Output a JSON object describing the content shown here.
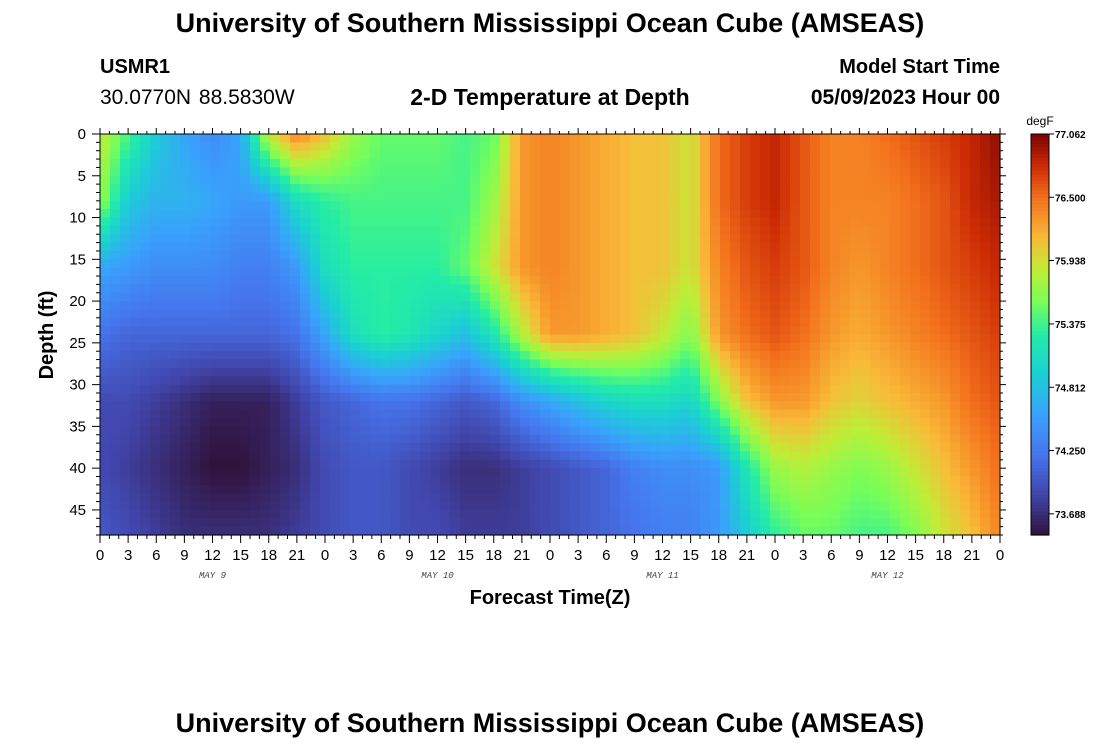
{
  "header": {
    "title": "University of Southern Mississippi Ocean Cube (AMSEAS)",
    "station": "USMR1",
    "coords": "30.0770N  88.5830W",
    "subtitle": "2-D Temperature at Depth",
    "start_label": "Model Start Time",
    "start_value": "05/09/2023 Hour 00"
  },
  "footer": {
    "title": "University of Southern Mississippi Ocean Cube (AMSEAS)"
  },
  "chart_data": {
    "type": "heatmap",
    "title": "2-D Temperature at Depth",
    "xlabel": "Forecast Time(Z)",
    "ylabel": "Depth (ft)",
    "x_ticks": [
      "0",
      "3",
      "6",
      "9",
      "12",
      "15",
      "18",
      "21",
      "0",
      "3",
      "6",
      "9",
      "12",
      "15",
      "18",
      "21",
      "0",
      "3",
      "6",
      "9",
      "12",
      "15",
      "18",
      "21",
      "0",
      "3",
      "6",
      "9",
      "12",
      "15",
      "18",
      "21",
      "0"
    ],
    "x_range_hours": [
      0,
      96
    ],
    "day_labels": [
      "MAY 9",
      "MAY 10",
      "MAY 11",
      "MAY 12"
    ],
    "y_ticks": [
      0,
      5,
      10,
      15,
      20,
      25,
      30,
      35,
      40,
      45
    ],
    "ylim": [
      0,
      48
    ],
    "colorbar": {
      "unit": "degF",
      "min": 73.5,
      "max": 77.062,
      "ticks": [
        "77.062",
        "76.500",
        "75.938",
        "75.375",
        "74.812",
        "74.250",
        "73.688"
      ]
    },
    "depths_ft": [
      0,
      8,
      16,
      24,
      32,
      40,
      48
    ],
    "times_h": [
      0,
      3,
      6,
      9,
      12,
      15,
      18,
      21,
      24,
      27,
      30,
      33,
      36,
      39,
      42,
      45,
      48,
      51,
      54,
      57,
      60,
      63,
      66,
      69,
      72,
      75,
      78,
      81,
      84,
      87,
      90,
      93,
      96
    ],
    "temperature_degF": [
      [
        75.9,
        75.4,
        74.9,
        74.6,
        74.4,
        74.6,
        75.9,
        76.4,
        76.1,
        75.7,
        75.5,
        75.5,
        75.5,
        75.4,
        75.5,
        76.3,
        76.4,
        76.3,
        76.2,
        76.1,
        76.1,
        75.9,
        76.5,
        76.7,
        76.8,
        76.6,
        76.4,
        76.4,
        76.5,
        76.6,
        76.7,
        76.8,
        77.0
      ],
      [
        75.7,
        74.9,
        74.7,
        74.7,
        74.6,
        74.5,
        74.5,
        75.1,
        75.3,
        75.4,
        75.4,
        75.4,
        75.4,
        75.4,
        75.7,
        76.3,
        76.4,
        76.3,
        76.2,
        76.1,
        76.1,
        75.9,
        76.5,
        76.7,
        76.8,
        76.6,
        76.4,
        76.4,
        76.4,
        76.5,
        76.6,
        76.8,
        76.9
      ],
      [
        74.6,
        74.5,
        74.4,
        74.4,
        74.4,
        74.3,
        74.3,
        74.5,
        75.1,
        75.3,
        75.3,
        75.3,
        75.3,
        75.5,
        75.9,
        76.3,
        76.4,
        76.3,
        76.2,
        76.1,
        76.1,
        75.9,
        76.4,
        76.6,
        76.7,
        76.6,
        76.4,
        76.3,
        76.4,
        76.5,
        76.6,
        76.7,
        76.8
      ],
      [
        74.2,
        74.1,
        74.1,
        74.1,
        74.1,
        74.1,
        74.1,
        74.2,
        74.6,
        75.1,
        75.3,
        75.2,
        75.0,
        74.8,
        75.2,
        75.8,
        76.3,
        76.3,
        76.2,
        76.1,
        75.9,
        75.6,
        76.3,
        76.5,
        76.6,
        76.5,
        76.3,
        76.2,
        76.3,
        76.4,
        76.5,
        76.6,
        76.7
      ],
      [
        73.9,
        73.9,
        73.8,
        73.7,
        73.6,
        73.6,
        73.6,
        73.8,
        74.0,
        74.1,
        74.2,
        74.2,
        74.1,
        74.0,
        74.1,
        74.4,
        74.6,
        74.8,
        75.0,
        75.1,
        75.1,
        75.0,
        75.6,
        76.1,
        76.3,
        76.3,
        76.1,
        76.0,
        76.1,
        76.2,
        76.3,
        76.5,
        76.6
      ],
      [
        73.9,
        73.8,
        73.7,
        73.6,
        73.5,
        73.5,
        73.6,
        73.7,
        73.9,
        74.0,
        74.0,
        73.9,
        73.8,
        73.7,
        73.7,
        73.8,
        73.9,
        74.0,
        74.1,
        74.3,
        74.4,
        74.4,
        74.5,
        75.2,
        75.7,
        75.8,
        75.7,
        75.6,
        75.7,
        75.9,
        76.1,
        76.3,
        76.5
      ],
      [
        74.0,
        73.9,
        73.8,
        73.7,
        73.7,
        73.7,
        73.7,
        73.8,
        73.9,
        74.0,
        74.0,
        73.9,
        73.9,
        73.8,
        73.8,
        73.8,
        73.9,
        74.0,
        74.1,
        74.2,
        74.3,
        74.3,
        74.5,
        74.9,
        75.3,
        75.5,
        75.5,
        75.4,
        75.4,
        75.6,
        75.9,
        76.1,
        76.4
      ]
    ]
  }
}
